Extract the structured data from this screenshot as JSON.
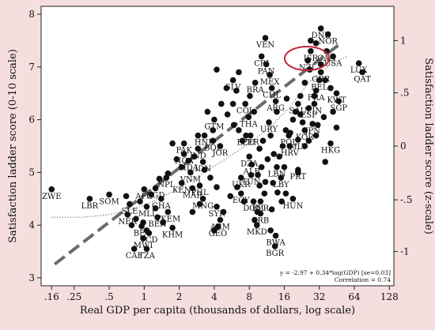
{
  "chart_data": {
    "type": "scatter",
    "xlabel": "Real GDP per capita (thousands of dollars, log scale)",
    "ylabel": "Satisfaction ladder score (0-10 scale)",
    "ylabel_right": "Satisfaction ladder score (z-scale)",
    "x_scale": "log",
    "x_ticks": [
      0.16,
      0.25,
      0.5,
      1,
      2,
      4,
      8,
      16,
      32,
      64,
      128
    ],
    "x_tick_labels": [
      ".16",
      ".25",
      ".5",
      "1",
      "2",
      "4",
      "8",
      "16",
      "32",
      "64",
      "128"
    ],
    "xlim": [
      0.13,
      140
    ],
    "y_ticks": [
      3,
      4,
      5,
      6,
      7,
      8
    ],
    "y_tick_labels": [
      "3",
      "4",
      "5",
      "6",
      "7",
      "8"
    ],
    "ylim": [
      2.85,
      8.15
    ],
    "y2_ticks": [
      [
        -1,
        3.5
      ],
      [
        -0.5,
        4.48
      ],
      [
        0,
        5.5
      ],
      [
        0.5,
        6.51
      ],
      [
        1,
        7.5
      ]
    ],
    "y2_tick_labels": [
      "-1",
      "-.5",
      "0",
      ".5",
      "1"
    ],
    "regression_text": "y = -2.97 + 0.34*log(GDP) [se=0.03]",
    "correlation_text": "Correlation = 0.74",
    "labeled_points": [
      {
        "label": "ZWE",
        "x": 0.16,
        "y": 4.68
      },
      {
        "label": "LBR",
        "x": 0.34,
        "y": 4.5
      },
      {
        "label": "SOM",
        "x": 0.5,
        "y": 4.58
      },
      {
        "label": "NER",
        "x": 0.72,
        "y": 4.2
      },
      {
        "label": "SLE",
        "x": 0.75,
        "y": 4.4
      },
      {
        "label": "CAF",
        "x": 0.82,
        "y": 3.55
      },
      {
        "label": "BFA",
        "x": 0.95,
        "y": 3.98
      },
      {
        "label": "MWI",
        "x": 0.98,
        "y": 3.75
      },
      {
        "label": "TCD",
        "x": 1.1,
        "y": 3.85
      },
      {
        "label": "TZA",
        "x": 1.05,
        "y": 3.55
      },
      {
        "label": "AFG",
        "x": 1.0,
        "y": 4.68
      },
      {
        "label": "MLI",
        "x": 1.05,
        "y": 4.35
      },
      {
        "label": "GHA",
        "x": 1.4,
        "y": 4.5
      },
      {
        "label": "TKEM",
        "x": 1.6,
        "y": 4.25
      },
      {
        "label": "KHM",
        "x": 1.75,
        "y": 3.95
      },
      {
        "label": "BGD",
        "x": 1.25,
        "y": 4.7
      },
      {
        "label": "BEN",
        "x": 1.3,
        "y": 4.15
      },
      {
        "label": "PHL",
        "x": 3.0,
        "y": 4.75
      },
      {
        "label": "MAR",
        "x": 2.6,
        "y": 4.7
      },
      {
        "label": "KEN",
        "x": 2.1,
        "y": 4.8
      },
      {
        "label": "NPL",
        "x": 1.55,
        "y": 4.9
      },
      {
        "label": "PAK",
        "x": 2.2,
        "y": 5.55
      },
      {
        "label": "NGA",
        "x": 2.2,
        "y": 5.35
      },
      {
        "label": "MDA",
        "x": 2.4,
        "y": 5.22
      },
      {
        "label": "IDN",
        "x": 3.2,
        "y": 5.2
      },
      {
        "label": "VNM",
        "x": 2.5,
        "y": 5.0
      },
      {
        "label": "IND",
        "x": 2.9,
        "y": 5.45
      },
      {
        "label": "GTM",
        "x": 4.0,
        "y": 6.0
      },
      {
        "label": "HND",
        "x": 3.3,
        "y": 5.7
      },
      {
        "label": "BOL",
        "x": 3.9,
        "y": 5.6
      },
      {
        "label": "JOR",
        "x": 4.5,
        "y": 5.5
      },
      {
        "label": "UKR",
        "x": 6.8,
        "y": 4.9
      },
      {
        "label": "MNG",
        "x": 3.2,
        "y": 4.5
      },
      {
        "label": "SYR",
        "x": 4.2,
        "y": 4.35
      },
      {
        "label": "ARM",
        "x": 4.5,
        "y": 4.1
      },
      {
        "label": "GEO",
        "x": 4.3,
        "y": 3.97
      },
      {
        "label": "EGY",
        "x": 6.8,
        "y": 4.6
      },
      {
        "label": "DOM",
        "x": 8.7,
        "y": 4.45
      },
      {
        "label": "BLR",
        "x": 10.0,
        "y": 4.45
      },
      {
        "label": "SRB",
        "x": 10.0,
        "y": 4.22
      },
      {
        "label": "MKD",
        "x": 9.3,
        "y": 4.0
      },
      {
        "label": "BWA",
        "x": 13.5,
        "y": 3.8
      },
      {
        "label": "BGR",
        "x": 13.3,
        "y": 3.6
      },
      {
        "label": "HUN",
        "x": 19.0,
        "y": 4.5
      },
      {
        "label": "PRT",
        "x": 21.0,
        "y": 5.05
      },
      {
        "label": "LBY",
        "x": 15.0,
        "y": 4.9
      },
      {
        "label": "LBN",
        "x": 13.8,
        "y": 5.1
      },
      {
        "label": "TUN",
        "x": 8.3,
        "y": 4.95
      },
      {
        "label": "ALB",
        "x": 8.4,
        "y": 5.15
      },
      {
        "label": "DZA",
        "x": 8.0,
        "y": 5.3
      },
      {
        "label": "SLV",
        "x": 5.8,
        "y": 6.75
      },
      {
        "label": "COL",
        "x": 7.4,
        "y": 6.3
      },
      {
        "label": "THA",
        "x": 7.9,
        "y": 6.05
      },
      {
        "label": "ECU",
        "x": 7.5,
        "y": 5.7
      },
      {
        "label": "PER",
        "x": 8.2,
        "y": 5.7
      },
      {
        "label": "URY",
        "x": 11.8,
        "y": 5.95
      },
      {
        "label": "POL",
        "x": 17.5,
        "y": 5.7
      },
      {
        "label": "HRV",
        "x": 17.8,
        "y": 5.5
      },
      {
        "label": "HKG",
        "x": 40.0,
        "y": 5.55
      },
      {
        "label": "BRA",
        "x": 9.0,
        "y": 6.7
      },
      {
        "label": "MEX",
        "x": 12.0,
        "y": 6.85
      },
      {
        "label": "CHL",
        "x": 12.5,
        "y": 6.6
      },
      {
        "label": "ARG",
        "x": 13.5,
        "y": 6.35
      },
      {
        "label": "CRI",
        "x": 10.2,
        "y": 7.2
      },
      {
        "label": "PAN",
        "x": 11.2,
        "y": 7.05
      },
      {
        "label": "VEN",
        "x": 11.0,
        "y": 7.55
      },
      {
        "label": "SAU",
        "x": 21.0,
        "y": 6.3
      },
      {
        "label": "FIN",
        "x": 29.0,
        "y": 6.3
      },
      {
        "label": "DNK",
        "x": 33.0,
        "y": 7.73
      },
      {
        "label": "NOR",
        "x": 38.0,
        "y": 7.62
      },
      {
        "label": "ISR",
        "x": 27.0,
        "y": 7.3
      },
      {
        "label": "NZL",
        "x": 25.5,
        "y": 7.12
      },
      {
        "label": "USA",
        "x": 42.0,
        "y": 7.2
      },
      {
        "label": "CAN",
        "x": 37.0,
        "y": 7.3
      },
      {
        "label": "GBR",
        "x": 33.0,
        "y": 6.9
      },
      {
        "label": "BEL",
        "x": 32.0,
        "y": 6.75
      },
      {
        "label": "FRA",
        "x": 30.0,
        "y": 6.55
      },
      {
        "label": "KWT",
        "x": 45.0,
        "y": 6.5
      },
      {
        "label": "SGP",
        "x": 47.0,
        "y": 6.35
      },
      {
        "label": "ESP",
        "x": 26.0,
        "y": 6.22
      },
      {
        "label": "JPN",
        "x": 28.0,
        "y": 5.92
      },
      {
        "label": "KOR",
        "x": 24.0,
        "y": 5.8
      },
      {
        "label": "MLT",
        "x": 21.0,
        "y": 5.62
      },
      {
        "label": "LUX",
        "x": 70.0,
        "y": 7.07
      },
      {
        "label": "QAT",
        "x": 75.0,
        "y": 6.9
      }
    ],
    "unlabeled_points": [
      [
        4.2,
        6.95
      ],
      [
        6.5,
        6.9
      ],
      [
        6.2,
        6.55
      ],
      [
        5.8,
        6.3
      ],
      [
        5.2,
        6.1
      ],
      [
        5.9,
        5.9
      ],
      [
        6.5,
        5.8
      ],
      [
        7.0,
        5.6
      ],
      [
        9.8,
        5.45
      ],
      [
        10.5,
        5.6
      ],
      [
        12.2,
        5.7
      ],
      [
        13.0,
        5.35
      ],
      [
        14.5,
        5.3
      ],
      [
        15.5,
        5.5
      ],
      [
        16.5,
        5.8
      ],
      [
        19.0,
        6.0
      ],
      [
        22.0,
        6.1
      ],
      [
        23.0,
        5.95
      ],
      [
        24.0,
        5.5
      ],
      [
        26.0,
        5.6
      ],
      [
        30.0,
        5.7
      ],
      [
        31.0,
        5.9
      ],
      [
        35.0,
        6.05
      ],
      [
        27.0,
        7.5
      ],
      [
        30.0,
        7.45
      ],
      [
        33.0,
        7.05
      ],
      [
        36.0,
        6.75
      ],
      [
        40.0,
        6.6
      ],
      [
        29.0,
        6.45
      ],
      [
        22.0,
        6.45
      ],
      [
        20.0,
        6.15
      ],
      [
        18.0,
        5.75
      ],
      [
        16.0,
        5.1
      ],
      [
        11.5,
        5.25
      ],
      [
        10.2,
        5.1
      ],
      [
        9.5,
        4.95
      ],
      [
        11.0,
        4.82
      ],
      [
        12.8,
        4.8
      ],
      [
        14.0,
        4.62
      ],
      [
        16.5,
        4.6
      ],
      [
        15.2,
        4.45
      ],
      [
        12.5,
        4.3
      ],
      [
        10.8,
        4.6
      ],
      [
        9.8,
        4.75
      ],
      [
        7.2,
        4.45
      ],
      [
        6.3,
        4.72
      ],
      [
        5.5,
        4.55
      ],
      [
        4.2,
        4.72
      ],
      [
        3.7,
        4.9
      ],
      [
        3.3,
        5.05
      ],
      [
        2.7,
        5.3
      ],
      [
        2.1,
        5.1
      ],
      [
        1.9,
        5.25
      ],
      [
        1.75,
        5.55
      ],
      [
        1.6,
        4.98
      ],
      [
        1.35,
        4.88
      ],
      [
        1.15,
        4.58
      ],
      [
        0.92,
        4.45
      ],
      [
        0.85,
        4.12
      ],
      [
        0.78,
        4.0
      ],
      [
        0.7,
        4.55
      ],
      [
        1.25,
        4.32
      ],
      [
        1.45,
        4.05
      ],
      [
        2.6,
        4.25
      ],
      [
        3.0,
        4.4
      ],
      [
        4.8,
        4.25
      ],
      [
        8.9,
        4.1
      ],
      [
        9.4,
        4.25
      ],
      [
        12.2,
        3.9
      ],
      [
        3.5,
        6.15
      ],
      [
        4.6,
        6.3
      ],
      [
        5.1,
        6.6
      ],
      [
        8.1,
        6.45
      ],
      [
        8.8,
        6.15
      ],
      [
        13.8,
        6.15
      ],
      [
        16.8,
        6.4
      ],
      [
        24.0,
        6.7
      ],
      [
        26.5,
        6.95
      ],
      [
        42.0,
        6.15
      ],
      [
        45.0,
        5.85
      ],
      [
        36.0,
        5.2
      ],
      [
        3.9,
        5.8
      ],
      [
        2.9,
        5.7
      ],
      [
        21.0,
        5.0
      ],
      [
        0.98,
        4.05
      ],
      [
        1.05,
        3.9
      ],
      [
        4.0,
        3.9
      ]
    ],
    "regression_line": {
      "x_start": 0.17,
      "x_end": 48,
      "y_at": "model"
    },
    "highlight": {
      "type": "ellipse",
      "around": [
        "ISR",
        "NZL",
        "USA",
        "CAN"
      ],
      "color": "#c0253a"
    }
  }
}
